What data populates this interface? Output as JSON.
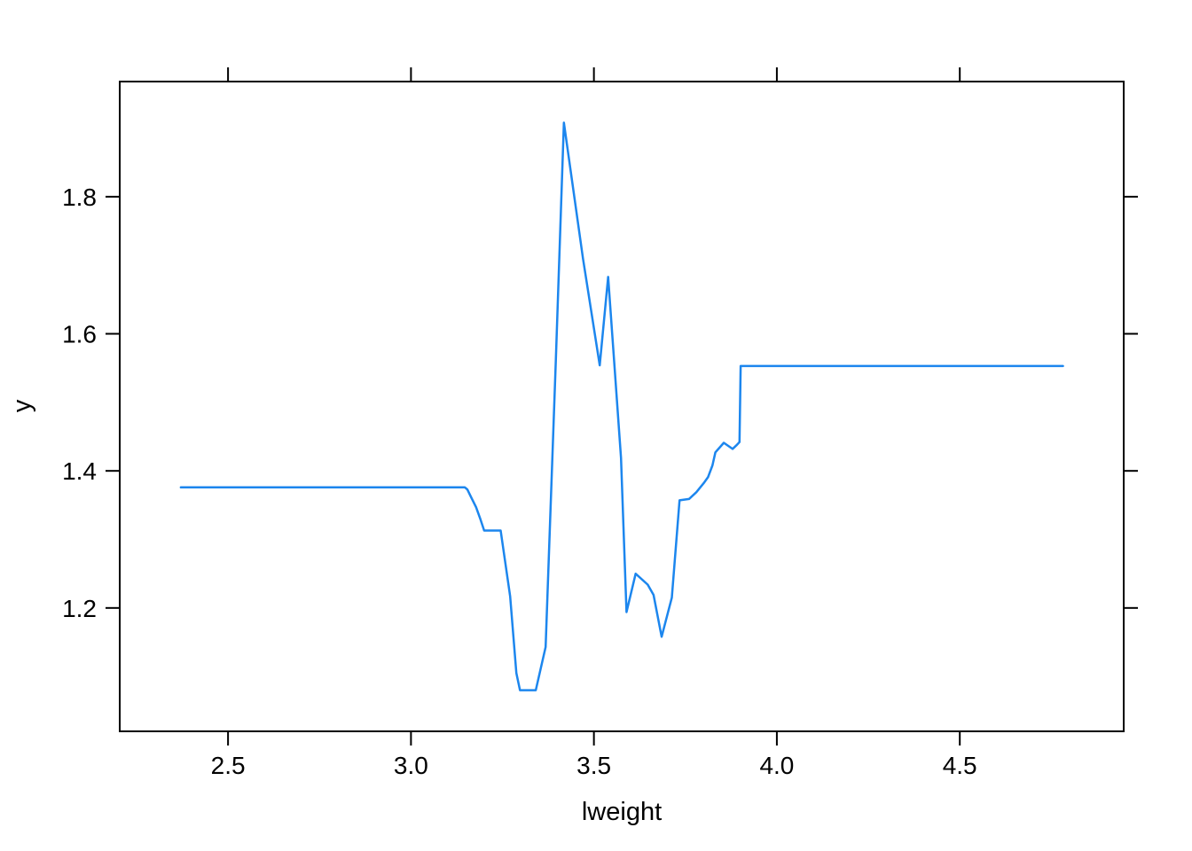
{
  "chart_data": {
    "type": "line",
    "title": "",
    "xlabel": "lweight",
    "ylabel": "y",
    "xlim": [
      2.204,
      4.948
    ],
    "ylim": [
      1.02,
      1.968
    ],
    "x_ticks": [
      2.5,
      3.0,
      3.5,
      4.0,
      4.5
    ],
    "x_tick_labels": [
      "2.5",
      "3.0",
      "3.5",
      "4.0",
      "4.5"
    ],
    "y_ticks": [
      1.2,
      1.4,
      1.6,
      1.8
    ],
    "y_tick_labels": [
      "1.2",
      "1.4",
      "1.6",
      "1.8"
    ],
    "grid": false,
    "legend": null,
    "frame": "closed box with outward ticks on all four sides, tick labels on bottom and left only",
    "line_color": "#1C86EE",
    "axis_color": "#000000",
    "background_color": "#ffffff",
    "series": [
      {
        "name": "y",
        "x": [
          2.371,
          3.147,
          3.154,
          3.165,
          3.178,
          3.19,
          3.2,
          3.245,
          3.271,
          3.288,
          3.298,
          3.341,
          3.368,
          3.396,
          3.418,
          3.47,
          3.516,
          3.539,
          3.574,
          3.589,
          3.614,
          3.647,
          3.663,
          3.685,
          3.713,
          3.734,
          3.76,
          3.78,
          3.8,
          3.812,
          3.824,
          3.832,
          3.855,
          3.879,
          3.889,
          3.898,
          3.901,
          4.782
        ],
        "y": [
          1.376,
          1.376,
          1.373,
          1.361,
          1.347,
          1.329,
          1.313,
          1.313,
          1.217,
          1.105,
          1.08,
          1.08,
          1.143,
          1.561,
          1.908,
          1.71,
          1.554,
          1.683,
          1.419,
          1.194,
          1.25,
          1.234,
          1.219,
          1.158,
          1.215,
          1.357,
          1.359,
          1.369,
          1.382,
          1.391,
          1.408,
          1.427,
          1.441,
          1.432,
          1.437,
          1.442,
          1.553,
          1.553
        ]
      }
    ]
  }
}
